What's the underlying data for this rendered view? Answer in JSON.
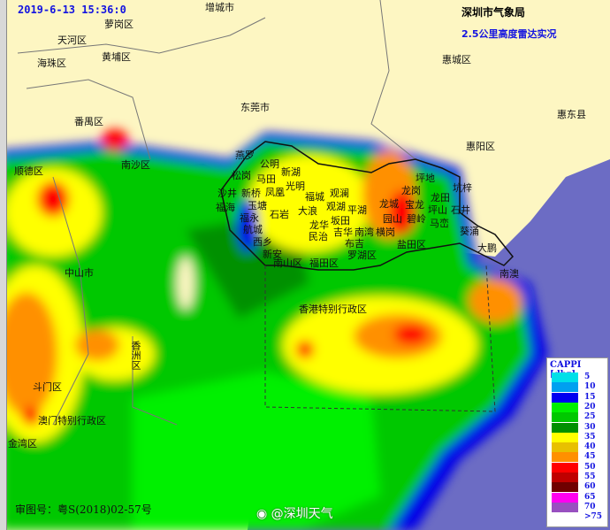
{
  "header": {
    "timestamp": "2019-6-13 15:36:0",
    "agency": "深圳市气象局",
    "subtitle": "2.5公里高度雷达实况"
  },
  "places": [
    "萝岗区",
    "增城市",
    "天河区",
    "海珠区",
    "黄埔区",
    "番禺区",
    "南沙区",
    "顺德区",
    "东莞市",
    "惠城区",
    "惠东县",
    "惠阳区",
    "中山市",
    "香洲区",
    "斗门区",
    "澳门特别行政区",
    "金湾区",
    "香港特别行政区",
    "燕罗",
    "公明",
    "松岗",
    "马田",
    "新湖",
    "光明",
    "凤凰",
    "沙井",
    "新桥",
    "福海",
    "玉塘",
    "福城",
    "观澜",
    "石岩",
    "大浪",
    "观湖",
    "平湖",
    "福永",
    "龙华",
    "坂田",
    "航城",
    "吉华",
    "南湾",
    "横岗",
    "西乡",
    "民治",
    "布吉",
    "新安",
    "罗湖区",
    "南山区",
    "福田区",
    "坪地",
    "龙岗",
    "坑梓",
    "龙田",
    "龙城",
    "宝龙",
    "坪山",
    "石井",
    "园山",
    "碧岭",
    "马峦",
    "葵涌",
    "盐田区",
    "大鹏",
    "南澳"
  ],
  "legend": {
    "title": "CAPPI [dbz]",
    "bins": [
      {
        "label": "5",
        "color": "#00e0e8"
      },
      {
        "label": "10",
        "color": "#00a0f0"
      },
      {
        "label": "15",
        "color": "#0000f0"
      },
      {
        "label": "20",
        "color": "#00f000"
      },
      {
        "label": "25",
        "color": "#00c800"
      },
      {
        "label": "30",
        "color": "#009000"
      },
      {
        "label": "35",
        "color": "#ffff00"
      },
      {
        "label": "40",
        "color": "#e8c000"
      },
      {
        "label": "45",
        "color": "#ff9000"
      },
      {
        "label": "50",
        "color": "#ff0000"
      },
      {
        "label": "55",
        "color": "#c00000"
      },
      {
        "label": "60",
        "color": "#700000"
      },
      {
        "label": "65",
        "color": "#ff00f0"
      },
      {
        "label": "70",
        "color": "#9850c0"
      },
      {
        "label": ">75",
        "color": "#ffffff"
      }
    ]
  },
  "footer": {
    "approval": "审图号：粤S(2018)02-57号",
    "watermark": "@深圳天气"
  },
  "colors": {
    "land": "#fdf6c2",
    "sea": "#6c6cc4"
  }
}
